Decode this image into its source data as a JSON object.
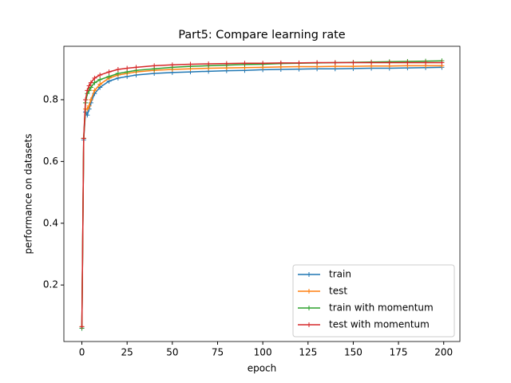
{
  "chart_data": {
    "type": "line",
    "title": "Part5: Compare learning rate",
    "x_label": "epoch",
    "y_label": "performance on datasets",
    "x": [
      0,
      1,
      2,
      3,
      4,
      5,
      7,
      10,
      15,
      20,
      25,
      30,
      40,
      50,
      60,
      70,
      80,
      90,
      100,
      110,
      120,
      130,
      140,
      150,
      160,
      170,
      180,
      190,
      199
    ],
    "series": [
      {
        "name": "train",
        "color": "#1f77b4",
        "values": [
          0.06,
          0.67,
          0.76,
          0.75,
          0.77,
          0.79,
          0.82,
          0.84,
          0.86,
          0.87,
          0.875,
          0.88,
          0.885,
          0.888,
          0.89,
          0.892,
          0.894,
          0.895,
          0.897,
          0.898,
          0.899,
          0.9,
          0.9,
          0.901,
          0.902,
          0.902,
          0.903,
          0.904,
          0.905
        ]
      },
      {
        "name": "test",
        "color": "#ff7f0e",
        "values": [
          0.065,
          0.675,
          0.77,
          0.77,
          0.78,
          0.8,
          0.83,
          0.85,
          0.87,
          0.88,
          0.885,
          0.89,
          0.895,
          0.898,
          0.9,
          0.902,
          0.903,
          0.904,
          0.905,
          0.906,
          0.907,
          0.907,
          0.908,
          0.908,
          0.909,
          0.909,
          0.91,
          0.91,
          0.91
        ]
      },
      {
        "name": "train with momentum",
        "color": "#2ca02c",
        "values": [
          0.06,
          0.675,
          0.79,
          0.82,
          0.83,
          0.84,
          0.855,
          0.865,
          0.875,
          0.885,
          0.89,
          0.895,
          0.9,
          0.905,
          0.908,
          0.91,
          0.912,
          0.914,
          0.915,
          0.917,
          0.918,
          0.919,
          0.92,
          0.921,
          0.922,
          0.923,
          0.924,
          0.925,
          0.926
        ]
      },
      {
        "name": "test with momentum",
        "color": "#d62728",
        "values": [
          0.065,
          0.675,
          0.8,
          0.83,
          0.845,
          0.855,
          0.87,
          0.88,
          0.89,
          0.898,
          0.902,
          0.905,
          0.91,
          0.913,
          0.915,
          0.916,
          0.917,
          0.918,
          0.918,
          0.919,
          0.919,
          0.92,
          0.92,
          0.92,
          0.92,
          0.92,
          0.92,
          0.92,
          0.92
        ]
      }
    ],
    "xlim": [
      -9.95,
      208.95
    ],
    "ylim": [
      0.017,
      0.973
    ],
    "xticks": [
      0,
      25,
      50,
      75,
      100,
      125,
      150,
      175,
      200
    ],
    "yticks": [
      0.2,
      0.4,
      0.6,
      0.8
    ],
    "legend": "lower right"
  }
}
